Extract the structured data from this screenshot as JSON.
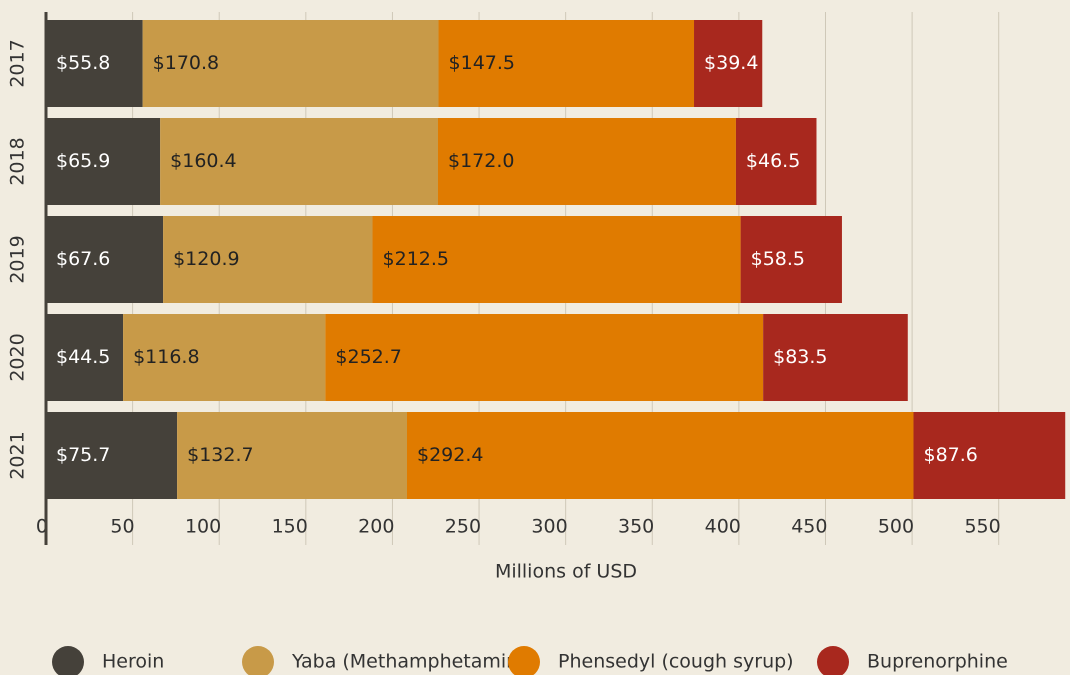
{
  "chart_data": {
    "type": "stacked-barh",
    "xlabel": "Millions of USD",
    "categories": [
      "2017",
      "2018",
      "2019",
      "2020",
      "2021"
    ],
    "series": [
      {
        "name": "Heroin",
        "color": "#45413a",
        "label_color": "#ffffff",
        "values": [
          55.8,
          65.9,
          67.6,
          44.5,
          75.7
        ],
        "value_labels": [
          "$55.8",
          "$65.9",
          "$67.6",
          "$44.5",
          "$75.7"
        ]
      },
      {
        "name": "Yaba (Methamphetamine)",
        "color": "#c89a48",
        "label_color": "#222222",
        "values": [
          170.8,
          160.4,
          120.9,
          116.8,
          132.7
        ],
        "value_labels": [
          "$170.8",
          "$160.4",
          "$120.9",
          "$116.8",
          "$132.7"
        ]
      },
      {
        "name": "Phensedyl (cough syrup)",
        "color": "#e07b00",
        "label_color": "#222222",
        "values": [
          147.5,
          172.0,
          212.5,
          252.7,
          292.4
        ],
        "value_labels": [
          "$147.5",
          "$172.0",
          "$212.5",
          "$252.7",
          "$292.4"
        ]
      },
      {
        "name": "Buprenorphine",
        "color": "#a8281e",
        "label_color": "#ffffff",
        "values": [
          39.4,
          46.5,
          58.5,
          83.5,
          87.6
        ],
        "value_labels": [
          "$39.4",
          "$46.5",
          "$58.5",
          "$83.5",
          "$87.6"
        ]
      }
    ],
    "xlim": [
      0,
      590
    ],
    "xticks": [
      0,
      50,
      100,
      150,
      200,
      250,
      300,
      350,
      400,
      450,
      500,
      550
    ],
    "grid": true
  }
}
